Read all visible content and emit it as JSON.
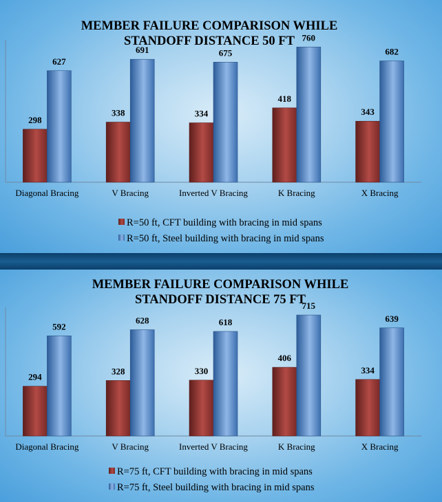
{
  "colors": {
    "cft": "#9c3a36",
    "steel": "#4f85c6"
  },
  "chart_data": [
    {
      "type": "bar",
      "title": "MEMBER FAILURE COMPARISON WHILE STANDOFF  DISTANCE 50 FT",
      "title_lines": [
        "MEMBER FAILURE COMPARISON WHILE",
        "STANDOFF  DISTANCE 50 FT"
      ],
      "categories": [
        "Diagonal Bracing",
        "V Bracing",
        "Inverted V Bracing",
        "K Bracing",
        "X Bracing"
      ],
      "series": [
        {
          "name": "R=50 ft, CFT building with bracing in mid spans",
          "values": [
            298,
            338,
            334,
            418,
            343
          ]
        },
        {
          "name": "R=50 ft, Steel building with bracing in mid spans",
          "values": [
            627,
            691,
            675,
            760,
            682
          ]
        }
      ],
      "xlabel": "",
      "ylabel": "",
      "ylim": [
        0,
        800
      ],
      "grid": false,
      "legend": "bottom"
    },
    {
      "type": "bar",
      "title": "MEMBER FAILURE COMPARISON WHILE STANDOFF  DISTANCE 75 FT",
      "title_lines": [
        "MEMBER FAILURE COMPARISON WHILE",
        "STANDOFF  DISTANCE 75 FT"
      ],
      "categories": [
        "Diagonal Bracing",
        "V Bracing",
        "Inverted V Bracing",
        "K Bracing",
        "X Bracing"
      ],
      "series": [
        {
          "name": "R=75 ft, CFT building with bracing in mid spans",
          "values": [
            294,
            328,
            330,
            406,
            334
          ]
        },
        {
          "name": "R=75 ft, Steel building with bracing in mid spans",
          "values": [
            592,
            628,
            618,
            715,
            639
          ]
        }
      ],
      "xlabel": "",
      "ylabel": "",
      "ylim": [
        0,
        760
      ],
      "grid": false,
      "legend": "bottom"
    }
  ]
}
